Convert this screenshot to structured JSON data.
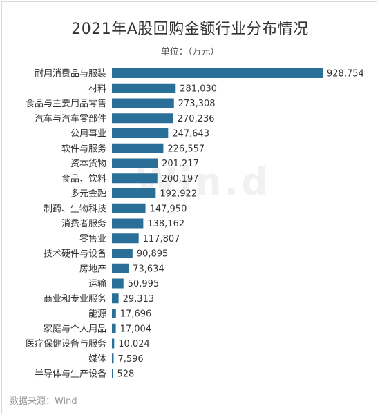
{
  "chart_data": {
    "type": "bar",
    "orientation": "horizontal",
    "title": "2021年A股回购金额行业分布情况",
    "unit_label": "单位：（万元）",
    "categories": [
      "耐用消费品与服装",
      "材料",
      "食品与主要用品零售",
      "汽车与汽车零部件",
      "公用事业",
      "软件与服务",
      "资本货物",
      "食品、饮料",
      "多元金融",
      "制药、生物科技",
      "消费者服务",
      "零售业",
      "技术硬件与设备",
      "房地产",
      "运输",
      "商业和专业服务",
      "能源",
      "家庭与个人用品",
      "医疗保健设备与服务",
      "媒体",
      "半导体与生产设备"
    ],
    "values": [
      928754,
      281030,
      273308,
      270236,
      247643,
      226557,
      201217,
      200197,
      192922,
      147950,
      138162,
      117807,
      90895,
      73634,
      50995,
      29313,
      17696,
      17004,
      10024,
      7596,
      528
    ],
    "value_labels": [
      "928,754",
      "281,030",
      "273,308",
      "270,236",
      "247,643",
      "226,557",
      "201,217",
      "200,197",
      "192,922",
      "147,950",
      "138,162",
      "117,807",
      "90,895",
      "73,634",
      "50,995",
      "29,313",
      "17,696",
      "17,004",
      "10,024",
      "7,596",
      "528"
    ],
    "xlim": [
      0,
      928754
    ],
    "grid": false,
    "legend": "none",
    "bar_color": "#2a6f97"
  },
  "source": "数据来源：Wind",
  "watermark": "Wind"
}
